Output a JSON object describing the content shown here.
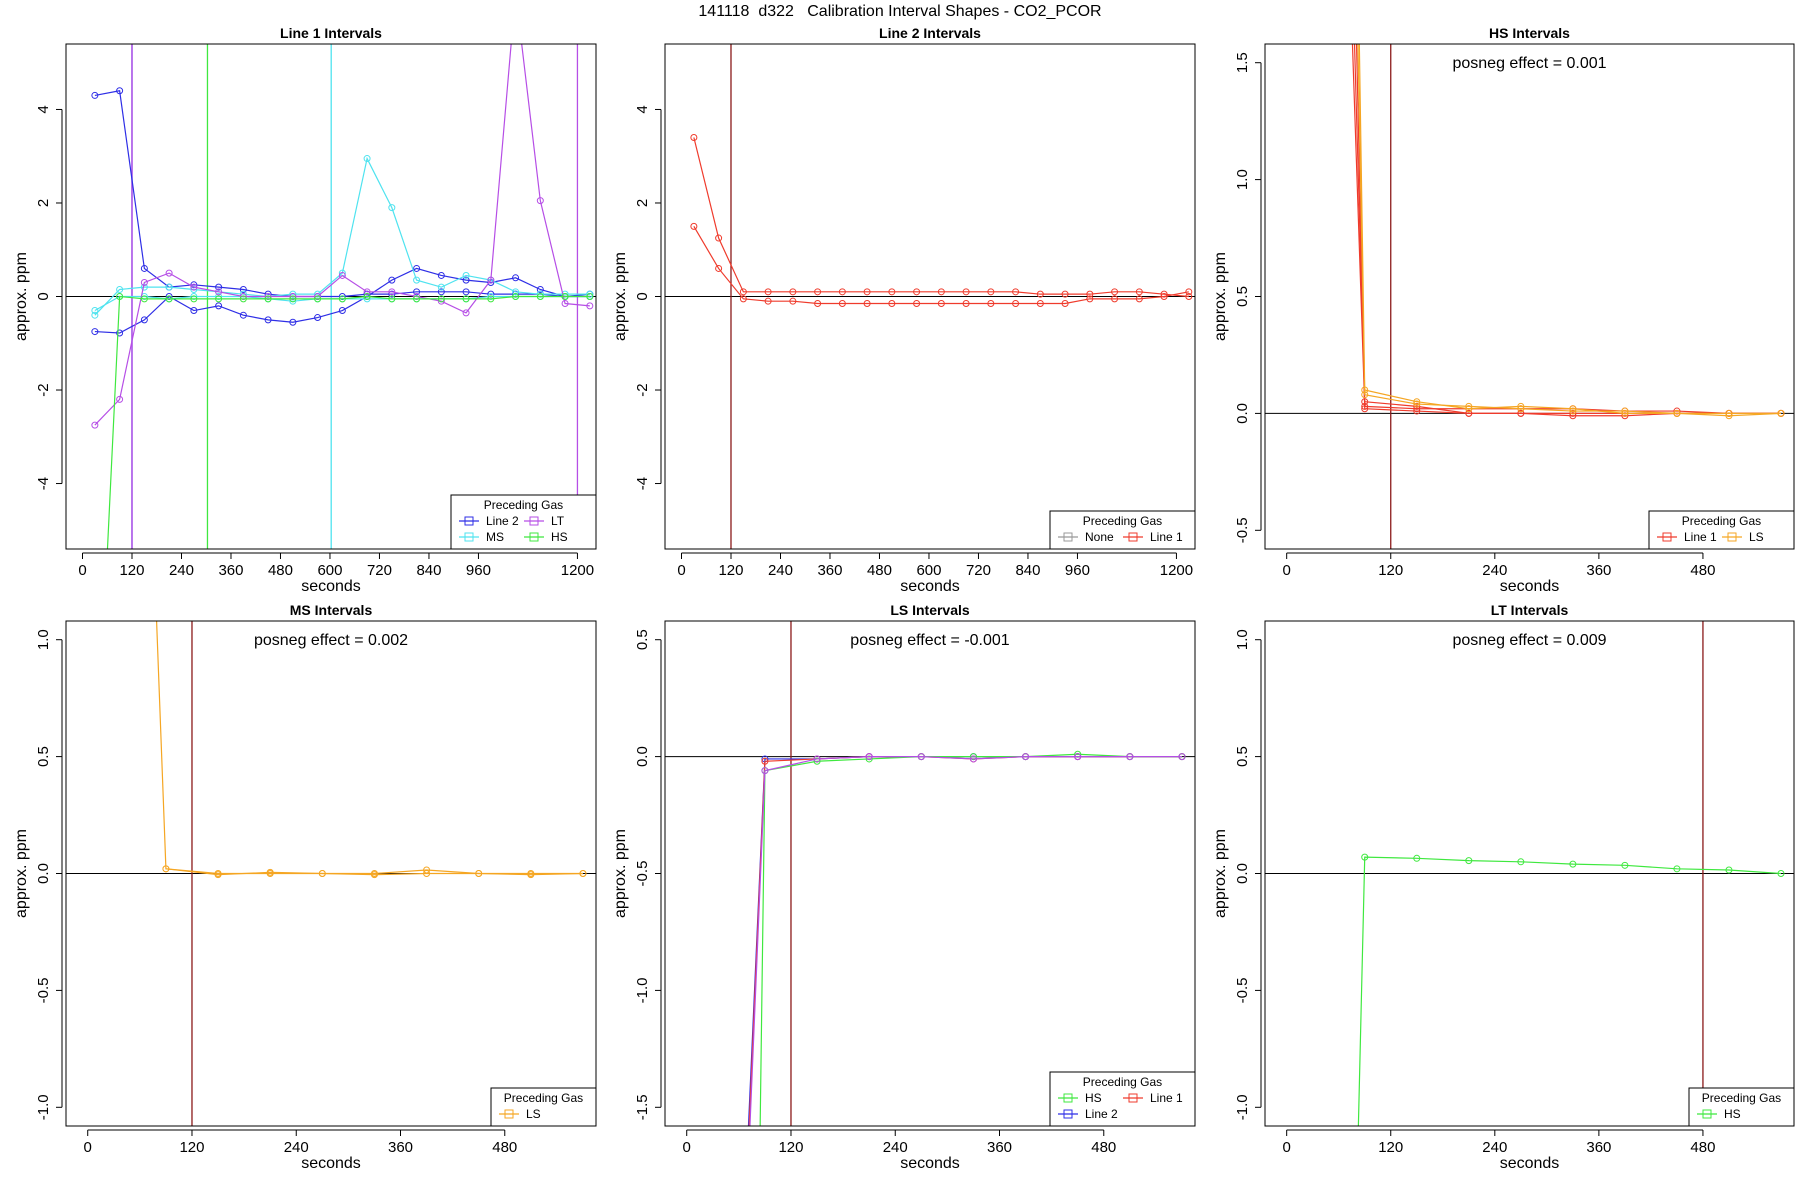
{
  "page_title": "141118  d322   Calibration Interval Shapes - CO2_PCOR",
  "colors": {
    "Line 2": "#2e2ee6",
    "Line 1": "#ef3b2c",
    "MS": "#4fe3ef",
    "LT": "#b64ee6",
    "HS": "#3fe83f",
    "LS": "#f5a623",
    "None": "#999999",
    "vline": "#8b1a1a",
    "axis": "#000000"
  },
  "chart_data": [
    {
      "id": "line1",
      "type": "line",
      "title": "Line 1 Intervals",
      "xlabel": "seconds",
      "ylabel": "approx. ppm",
      "xlim": [
        -40,
        1245
      ],
      "ylim": [
        -5.4,
        5.4
      ],
      "xticks": [
        0,
        120,
        240,
        360,
        480,
        600,
        720,
        840,
        960,
        1200
      ],
      "yticks": [
        -4,
        -2,
        0,
        2,
        4
      ],
      "annotation": "",
      "legend": {
        "title": "Preceding Gas",
        "position": "bottom-right",
        "columns": 2,
        "entries": [
          "Line 2",
          "LT",
          "MS",
          "HS"
        ]
      },
      "vlines": [
        {
          "x": 120,
          "color": "Line 2"
        },
        {
          "x": 120,
          "color": "LT"
        },
        {
          "x": 303,
          "color": "HS"
        },
        {
          "x": 603,
          "color": "MS"
        },
        {
          "x": 1200,
          "color": "LT"
        }
      ],
      "series": [
        {
          "name": "Line 2",
          "x": [
            30,
            90,
            150,
            210,
            270,
            330,
            390,
            450,
            510,
            570,
            630,
            690,
            750,
            810,
            870,
            930,
            990,
            1050,
            1110,
            1170,
            1230
          ],
          "y": [
            4.3,
            4.4,
            0.6,
            0.2,
            0.25,
            0.2,
            0.15,
            0.05,
            0.0,
            0.0,
            0.0,
            0.05,
            0.05,
            0.1,
            0.1,
            0.1,
            0.05,
            0.05,
            0.05,
            0.0,
            0.0
          ]
        },
        {
          "name": "Line 2",
          "x": [
            30,
            90,
            150,
            210,
            270,
            330,
            390,
            450,
            510,
            570,
            630,
            690,
            750,
            810,
            870,
            930,
            990,
            1050,
            1110,
            1170,
            1230
          ],
          "y": [
            -0.75,
            -0.78,
            -0.5,
            0.0,
            -0.3,
            -0.2,
            -0.4,
            -0.5,
            -0.55,
            -0.45,
            -0.3,
            0.0,
            0.35,
            0.6,
            0.45,
            0.35,
            0.3,
            0.4,
            0.15,
            0.0,
            0.05
          ]
        },
        {
          "name": "MS",
          "x": [
            30,
            90,
            150,
            210,
            270,
            330,
            390,
            450,
            510,
            570,
            630,
            690,
            750,
            810,
            870,
            930,
            990,
            1050,
            1110,
            1170,
            1230
          ],
          "y": [
            -0.4,
            0.15,
            0.2,
            0.2,
            0.15,
            0.1,
            0.05,
            0.0,
            0.05,
            0.05,
            0.5,
            2.95,
            1.9,
            0.35,
            0.2,
            0.45,
            0.35,
            0.1,
            0.05,
            0.05,
            0.05
          ]
        },
        {
          "name": "MS",
          "x": [
            30,
            90,
            150,
            210,
            270,
            330,
            390,
            450,
            510,
            570,
            630,
            690,
            750,
            810,
            870,
            930,
            990,
            1050,
            1110,
            1170,
            1230
          ],
          "y": [
            -0.3,
            0.0,
            0.0,
            -0.05,
            0.0,
            0.0,
            0.0,
            -0.05,
            -0.1,
            -0.05,
            -0.05,
            -0.05,
            -0.05,
            -0.05,
            -0.05,
            -0.05,
            0.0,
            0.0,
            0.0,
            0.0,
            0.0
          ]
        },
        {
          "name": "LT",
          "x": [
            30,
            90,
            150,
            210,
            270,
            330,
            390,
            450,
            510,
            570,
            630,
            690,
            750,
            810,
            870,
            930,
            990,
            1050,
            1110,
            1170,
            1230
          ],
          "y": [
            -2.75,
            -2.2,
            0.3,
            0.5,
            0.2,
            0.1,
            0.0,
            0.0,
            0.0,
            0.0,
            0.45,
            0.1,
            0.1,
            0.0,
            -0.1,
            -0.35,
            0.35,
            6.5,
            2.05,
            -0.15,
            -0.2
          ]
        },
        {
          "name": "HS",
          "x": [
            30,
            60,
            90,
            150,
            210,
            270,
            330,
            390,
            450,
            510,
            570,
            630,
            690,
            750,
            810,
            870,
            930,
            990,
            1050,
            1110,
            1170,
            1230
          ],
          "y": [
            -8.5,
            -5.5,
            0.0,
            -0.05,
            -0.05,
            -0.05,
            -0.05,
            -0.05,
            -0.05,
            -0.05,
            -0.05,
            -0.05,
            0.0,
            -0.05,
            -0.05,
            -0.05,
            -0.05,
            -0.05,
            0.0,
            0.0,
            0.0,
            0.0
          ]
        }
      ]
    },
    {
      "id": "line2",
      "type": "line",
      "title": "Line 2 Intervals",
      "xlabel": "seconds",
      "ylabel": "approx. ppm",
      "xlim": [
        -40,
        1245
      ],
      "ylim": [
        -5.4,
        5.4
      ],
      "xticks": [
        0,
        120,
        240,
        360,
        480,
        600,
        720,
        840,
        960,
        1200
      ],
      "yticks": [
        -4,
        -2,
        0,
        2,
        4
      ],
      "annotation": "",
      "legend": {
        "title": "Preceding Gas",
        "position": "bottom-right",
        "columns": 2,
        "entries": [
          "None",
          "Line 1"
        ]
      },
      "vlines": [
        {
          "x": 120,
          "color": "vline"
        }
      ],
      "series": [
        {
          "name": "Line 1",
          "x": [
            30,
            90,
            150,
            210,
            270,
            330,
            390,
            450,
            510,
            570,
            630,
            690,
            750,
            810,
            870,
            930,
            990,
            1050,
            1110,
            1170,
            1230
          ],
          "y": [
            3.4,
            1.25,
            0.1,
            0.1,
            0.1,
            0.1,
            0.1,
            0.1,
            0.1,
            0.1,
            0.1,
            0.1,
            0.1,
            0.1,
            0.05,
            0.05,
            0.05,
            0.1,
            0.1,
            0.05,
            0.0
          ]
        },
        {
          "name": "Line 1",
          "x": [
            30,
            90,
            150,
            210,
            270,
            330,
            390,
            450,
            510,
            570,
            630,
            690,
            750,
            810,
            870,
            930,
            990,
            1050,
            1110,
            1170,
            1230
          ],
          "y": [
            1.5,
            0.6,
            -0.05,
            -0.1,
            -0.1,
            -0.15,
            -0.15,
            -0.15,
            -0.15,
            -0.15,
            -0.15,
            -0.15,
            -0.15,
            -0.15,
            -0.15,
            -0.15,
            -0.05,
            -0.05,
            -0.05,
            0.0,
            0.1
          ]
        }
      ]
    },
    {
      "id": "hs",
      "type": "line",
      "title": "HS Intervals",
      "xlabel": "seconds",
      "ylabel": "approx. ppm",
      "xlim": [
        -25,
        585
      ],
      "ylim": [
        -0.58,
        1.58
      ],
      "xticks": [
        0,
        120,
        240,
        360,
        480
      ],
      "yticks": [
        -0.5,
        0.0,
        0.5,
        1.0,
        1.5
      ],
      "annotation": "posneg effect = 0.001",
      "legend": {
        "title": "Preceding Gas",
        "position": "bottom-right",
        "columns": 2,
        "entries": [
          "Line 1",
          "LS"
        ]
      },
      "vlines": [
        {
          "x": 120,
          "color": "vline"
        }
      ],
      "series": [
        {
          "name": "Line 1",
          "x": [
            72,
            90,
            150,
            210,
            270,
            330,
            390,
            450,
            510,
            570
          ],
          "y": [
            2.0,
            0.03,
            0.02,
            0.02,
            0.02,
            0.02,
            0.01,
            0.01,
            0.0,
            0.0
          ]
        },
        {
          "name": "Line 1",
          "x": [
            75,
            90,
            150,
            210,
            270,
            330,
            390,
            450,
            510,
            570
          ],
          "y": [
            2.0,
            0.05,
            0.03,
            0.0,
            0.0,
            0.0,
            0.0,
            0.0,
            0.0,
            0.0
          ]
        },
        {
          "name": "Line 1",
          "x": [
            78,
            90,
            150,
            210,
            270,
            330,
            390,
            450,
            510,
            570
          ],
          "y": [
            2.0,
            0.02,
            0.01,
            0.0,
            0.0,
            -0.01,
            -0.01,
            0.0,
            0.0,
            0.0
          ]
        },
        {
          "name": "LS",
          "x": [
            80,
            90,
            150,
            210,
            270,
            330,
            390,
            450,
            510,
            570
          ],
          "y": [
            2.0,
            0.08,
            0.04,
            0.03,
            0.02,
            0.01,
            0.01,
            0.0,
            -0.01,
            0.0
          ]
        },
        {
          "name": "LS",
          "x": [
            82,
            90,
            150,
            210,
            270,
            330,
            390,
            450,
            510,
            570
          ],
          "y": [
            2.0,
            0.1,
            0.05,
            0.02,
            0.03,
            0.02,
            0.0,
            0.0,
            0.0,
            0.0
          ]
        }
      ]
    },
    {
      "id": "ms",
      "type": "line",
      "title": "MS Intervals",
      "xlabel": "seconds",
      "ylabel": "approx. ppm",
      "xlim": [
        -25,
        585
      ],
      "ylim": [
        -1.08,
        1.08
      ],
      "xticks": [
        0,
        120,
        240,
        360,
        480
      ],
      "yticks": [
        -1.0,
        -0.5,
        0.0,
        0.5,
        1.0
      ],
      "annotation": "posneg effect = 0.002",
      "legend": {
        "title": "Preceding Gas",
        "position": "bottom-right",
        "columns": 1,
        "entries": [
          "LS"
        ]
      },
      "vlines": [
        {
          "x": 120,
          "color": "vline"
        }
      ],
      "series": [
        {
          "name": "LS",
          "x": [
            75,
            90,
            150,
            210,
            270,
            330,
            390,
            450,
            510,
            570
          ],
          "y": [
            1.5,
            0.02,
            0.0,
            0.0,
            0.0,
            0.0,
            0.015,
            0.0,
            0.0,
            0.0
          ]
        },
        {
          "name": "LS",
          "x": [
            90,
            150,
            210,
            270,
            330,
            390,
            450,
            510,
            570
          ],
          "y": [
            0.02,
            -0.005,
            0.005,
            0.0,
            -0.005,
            0.0,
            0.0,
            -0.005,
            0.0
          ]
        }
      ]
    },
    {
      "id": "ls",
      "type": "line",
      "title": "LS Intervals",
      "xlabel": "seconds",
      "ylabel": "approx. ppm",
      "xlim": [
        -25,
        585
      ],
      "ylim": [
        -1.58,
        0.58
      ],
      "xticks": [
        0,
        120,
        240,
        360,
        480
      ],
      "yticks": [
        -1.5,
        -1.0,
        -0.5,
        0.0,
        0.5
      ],
      "annotation": "posneg effect = -0.001",
      "legend": {
        "title": "Preceding Gas",
        "position": "bottom-right",
        "columns": 2,
        "entries": [
          "HS",
          "Line 1",
          "Line 2"
        ]
      },
      "vlines": [
        {
          "x": 120,
          "color": "vline"
        }
      ],
      "series": [
        {
          "name": "Line 2",
          "x": [
            66,
            90,
            150,
            210,
            270,
            330,
            390,
            450,
            510,
            570
          ],
          "y": [
            -2.0,
            -0.01,
            -0.01,
            0.0,
            0.0,
            0.0,
            0.0,
            0.0,
            0.0,
            0.0
          ]
        },
        {
          "name": "Line 1",
          "x": [
            67,
            90,
            150,
            210,
            270,
            330,
            390,
            450,
            510,
            570
          ],
          "y": [
            -2.0,
            -0.02,
            -0.01,
            0.0,
            0.0,
            -0.01,
            0.0,
            0.0,
            0.0,
            0.0
          ]
        },
        {
          "name": "HS",
          "x": [
            83,
            90,
            150,
            210,
            270,
            330,
            390,
            450,
            510,
            570
          ],
          "y": [
            -2.0,
            -0.06,
            -0.02,
            -0.01,
            0.0,
            0.0,
            0.0,
            0.01,
            0.0,
            0.0
          ]
        },
        {
          "name": "LT",
          "x": [
            68,
            90,
            150,
            210,
            270,
            330,
            390,
            450,
            510,
            570
          ],
          "y": [
            -2.0,
            -0.06,
            -0.01,
            0.0,
            0.0,
            -0.01,
            0.0,
            0.0,
            0.0,
            0.0
          ]
        }
      ]
    },
    {
      "id": "lt",
      "type": "line",
      "title": "LT Intervals",
      "xlabel": "seconds",
      "ylabel": "approx. ppm",
      "xlim": [
        -25,
        585
      ],
      "ylim": [
        -1.08,
        1.08
      ],
      "xticks": [
        0,
        120,
        240,
        360,
        480
      ],
      "yticks": [
        -1.0,
        -0.5,
        0.0,
        0.5,
        1.0
      ],
      "annotation": "posneg effect = 0.009",
      "legend": {
        "title": "Preceding Gas",
        "position": "bottom-right",
        "columns": 1,
        "entries": [
          "HS"
        ]
      },
      "vlines": [
        {
          "x": 480,
          "color": "vline"
        }
      ],
      "series": [
        {
          "name": "HS",
          "x": [
            80,
            90,
            150,
            210,
            270,
            330,
            390,
            450,
            510,
            570
          ],
          "y": [
            -1.5,
            0.07,
            0.065,
            0.055,
            0.05,
            0.04,
            0.035,
            0.02,
            0.015,
            0.0
          ]
        }
      ]
    }
  ]
}
